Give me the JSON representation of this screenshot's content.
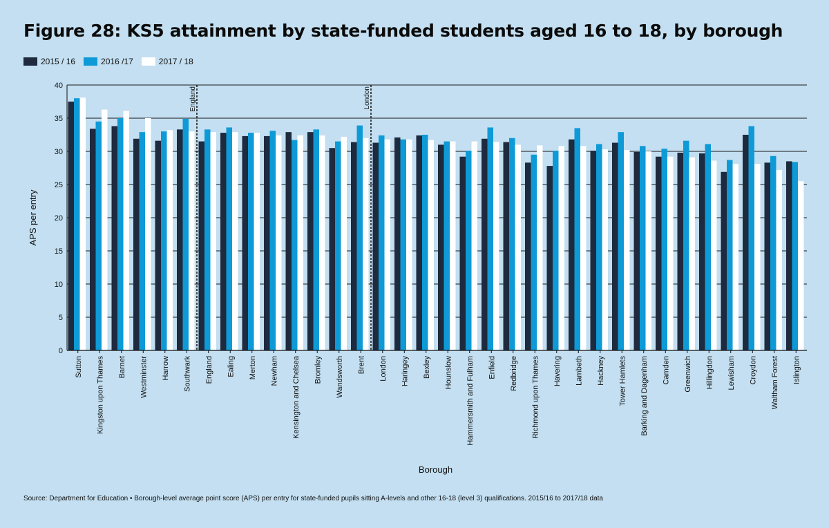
{
  "chart_data": {
    "type": "bar",
    "title": "Figure 28: KS5 attainment by state-funded students aged 16 to 18, by borough",
    "xlabel": "Borough",
    "ylabel": "APS per entry",
    "ylim": [
      0,
      40
    ],
    "yticks": [
      0,
      5,
      10,
      15,
      20,
      25,
      30,
      35,
      40
    ],
    "grid": "horizontal",
    "legend": "top-left",
    "categories": [
      "Sutton",
      "Kingston upon Thames",
      "Barnet",
      "Westminster",
      "Harrow",
      "Southwark",
      "England",
      "Ealing",
      "Merton",
      "Newham",
      "Kensington and Chelsea",
      "Bromley",
      "Wandsworth",
      "Brent",
      "London",
      "Haringey",
      "Bexley",
      "Hounslow",
      "Hammersmith and Fulham",
      "Enfield",
      "Redbridge",
      "Richmond upon Thames",
      "Havering",
      "Lambeth",
      "Hackney",
      "Tower Hamlets",
      "Barking and Dagenham",
      "Camden",
      "Greenwich",
      "Hillingdon",
      "Lewisham",
      "Croydon",
      "Waltham Forest",
      "Islington"
    ],
    "series": [
      {
        "name": "2015 / 16",
        "color": "#1e2a3e",
        "values": [
          37.5,
          33.4,
          33.8,
          31.9,
          31.6,
          33.3,
          31.5,
          32.8,
          32.3,
          32.3,
          32.9,
          32.9,
          30.5,
          31.4,
          31.3,
          32.1,
          32.4,
          31.0,
          29.2,
          31.9,
          31.4,
          28.3,
          27.8,
          31.8,
          30.1,
          31.3,
          29.9,
          29.2,
          29.8,
          29.7,
          26.9,
          32.5,
          28.3,
          28.5
        ]
      },
      {
        "name": "2016 /17",
        "color": "#0e9ad7",
        "values": [
          38.0,
          34.5,
          35.0,
          32.9,
          33.0,
          34.9,
          33.3,
          33.6,
          32.8,
          33.1,
          31.7,
          33.3,
          31.5,
          33.9,
          32.4,
          31.8,
          32.5,
          31.5,
          30.1,
          33.6,
          32.0,
          29.5,
          30.1,
          33.5,
          31.1,
          32.9,
          30.8,
          30.4,
          31.6,
          31.1,
          28.7,
          33.8,
          29.3,
          28.4
        ]
      },
      {
        "name": "2017 / 18",
        "color": "#ffffff",
        "values": [
          38.1,
          36.3,
          36.1,
          35.0,
          33.2,
          33.0,
          32.9,
          32.9,
          32.8,
          32.4,
          32.4,
          32.4,
          32.2,
          32.0,
          31.8,
          31.8,
          31.7,
          31.5,
          31.5,
          31.4,
          31.0,
          30.9,
          30.8,
          30.8,
          30.3,
          30.2,
          30.0,
          29.2,
          29.1,
          28.6,
          28.1,
          28.1,
          27.2,
          25.5
        ]
      }
    ],
    "reference_lines": [
      {
        "label": "England",
        "category": "England"
      },
      {
        "label": "London",
        "category": "London"
      }
    ]
  },
  "source": "Source: Department for Education • Borough-level average point score (APS) per entry for state-funded pupils sitting A-levels and other 16-18 (level 3) qualifications. 2015/16 to 2017/18 data"
}
